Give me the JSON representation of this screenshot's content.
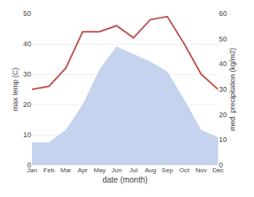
{
  "chart_data": {
    "type": "line",
    "xlabel": "date (month)",
    "ylabel": "max temp (C)",
    "y2label": "med. precipitation (kg/m2)",
    "categories": [
      "Jan",
      "Feb",
      "Mar",
      "Apr",
      "May",
      "Jun",
      "Jul",
      "Aug",
      "Sep",
      "Oct",
      "Nov",
      "Dec"
    ],
    "series": [
      {
        "type": "line",
        "color": "#c0504d",
        "values": [
          25,
          26,
          32,
          44,
          44,
          46,
          42,
          48,
          49,
          40,
          30,
          25
        ]
      },
      {
        "type": "area",
        "color": "#c5d3ef",
        "axis": "y2",
        "values": [
          9,
          9,
          14,
          24,
          38,
          47,
          44,
          41,
          37,
          26,
          14,
          11
        ]
      }
    ],
    "ylim": [
      0,
      50
    ],
    "yticks": [
      0,
      10,
      20,
      30,
      40,
      50
    ],
    "y2lim": [
      0,
      60
    ],
    "y2ticks": [
      0,
      10,
      20,
      30,
      40,
      50,
      60
    ],
    "grid": true
  }
}
